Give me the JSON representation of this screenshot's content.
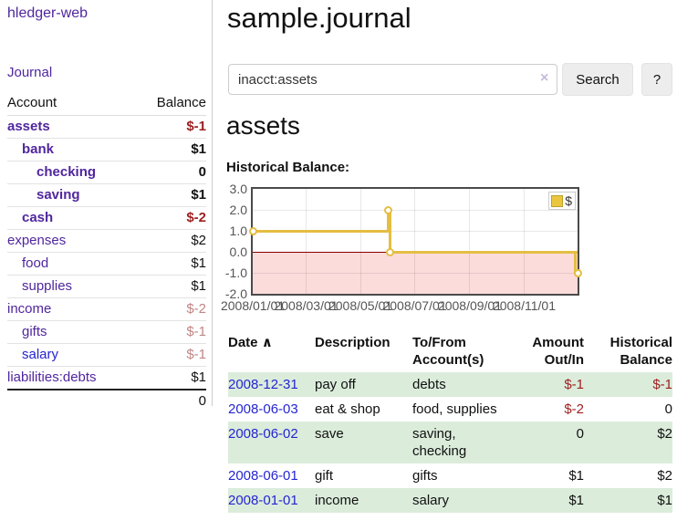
{
  "app": {
    "brand": "hledger-web",
    "nav_journal": "Journal"
  },
  "sidebar": {
    "account_header": "Account",
    "balance_header": "Balance",
    "accounts": [
      {
        "name": "assets",
        "level": 1,
        "bold": true,
        "balance": "$-1",
        "bclass": "neg",
        "link_blue": false
      },
      {
        "name": "bank",
        "level": 2,
        "bold": true,
        "balance": "$1",
        "bclass": "",
        "link_blue": false
      },
      {
        "name": "checking",
        "level": 3,
        "bold": true,
        "balance": "0",
        "bclass": "",
        "link_blue": false
      },
      {
        "name": "saving",
        "level": 3,
        "bold": true,
        "balance": "$1",
        "bclass": "",
        "link_blue": false
      },
      {
        "name": "cash",
        "level": 2,
        "bold": true,
        "balance": "$-2",
        "bclass": "neg",
        "link_blue": false
      },
      {
        "name": "expenses",
        "level": 1,
        "bold": false,
        "balance": "$2",
        "bclass": "",
        "link_blue": false
      },
      {
        "name": "food",
        "level": 2,
        "bold": false,
        "balance": "$1",
        "bclass": "",
        "link_blue": false
      },
      {
        "name": "supplies",
        "level": 2,
        "bold": false,
        "balance": "$1",
        "bclass": "",
        "link_blue": false
      },
      {
        "name": "income",
        "level": 1,
        "bold": false,
        "balance": "$-2",
        "bclass": "negfade",
        "link_blue": false
      },
      {
        "name": "gifts",
        "level": 2,
        "bold": false,
        "balance": "$-1",
        "bclass": "negfade",
        "link_blue": false
      },
      {
        "name": "salary",
        "level": 2,
        "bold": false,
        "balance": "$-1",
        "bclass": "negfade",
        "link_blue": true
      },
      {
        "name": "liabilities:debts",
        "level": 1,
        "bold": false,
        "balance": "$1",
        "bclass": "",
        "link_blue": false
      }
    ],
    "total": "0"
  },
  "main": {
    "title": "sample.journal",
    "search": {
      "value": "inacct:assets",
      "clear_icon": "×",
      "search_button": "Search",
      "help_button": "?"
    },
    "account_heading": "assets",
    "section_heading": "Historical Balance:"
  },
  "chart_data": {
    "type": "line",
    "step": true,
    "title": "Historical Balance:",
    "series": [
      {
        "name": "$",
        "points": [
          {
            "date": "2008-01-01",
            "value": 1
          },
          {
            "date": "2008-06-01",
            "value": 2
          },
          {
            "date": "2008-06-03",
            "value": 0
          },
          {
            "date": "2008-12-31",
            "value": -1
          }
        ]
      }
    ],
    "x_range": [
      "2008-01-01",
      "2008-12-31"
    ],
    "ylim": [
      -2,
      3
    ],
    "ytick_labels": [
      "3.0",
      "2.0",
      "1.0",
      "0.0",
      "-1.0",
      "-2.0"
    ],
    "xtick_labels": [
      "2008/01/01",
      "2008/03/01",
      "2008/05/01",
      "2008/07/01",
      "2008/09/01",
      "2008/11/01"
    ],
    "legend": "$",
    "legend_position": "top-right",
    "grid": true,
    "colors": {
      "line": "#e4be43",
      "marker_fill": "#ffffff",
      "negative_area": "#fcdbdb",
      "zero_line": "#8b0000",
      "grid": "rgba(0,0,0,0.09)",
      "border": "#4a4a4a",
      "legend_fill": "#e9c63e"
    }
  },
  "register": {
    "headers": {
      "date": "Date",
      "description": "Description",
      "accounts": "To/From Account(s)",
      "amount": "Amount Out/In",
      "balance": "Historical Balance"
    },
    "sort_icon": "∧",
    "rows": [
      {
        "date": "2008-12-31",
        "description": "pay off",
        "accounts": "debts",
        "amount": "$-1",
        "amount_neg": true,
        "balance": "$-1",
        "balance_neg": true,
        "green": true
      },
      {
        "date": "2008-06-03",
        "description": "eat & shop",
        "accounts": "food, supplies",
        "amount": "$-2",
        "amount_neg": true,
        "balance": "0",
        "balance_neg": false,
        "green": false
      },
      {
        "date": "2008-06-02",
        "description": "save",
        "accounts": "saving, checking",
        "amount": "0",
        "amount_neg": false,
        "balance": "$2",
        "balance_neg": false,
        "green": true
      },
      {
        "date": "2008-06-01",
        "description": "gift",
        "accounts": "gifts",
        "amount": "$1",
        "amount_neg": false,
        "balance": "$2",
        "balance_neg": false,
        "green": false
      },
      {
        "date": "2008-01-01",
        "description": "income",
        "accounts": "salary",
        "amount": "$1",
        "amount_neg": false,
        "balance": "$1",
        "balance_neg": false,
        "green": true
      }
    ]
  }
}
